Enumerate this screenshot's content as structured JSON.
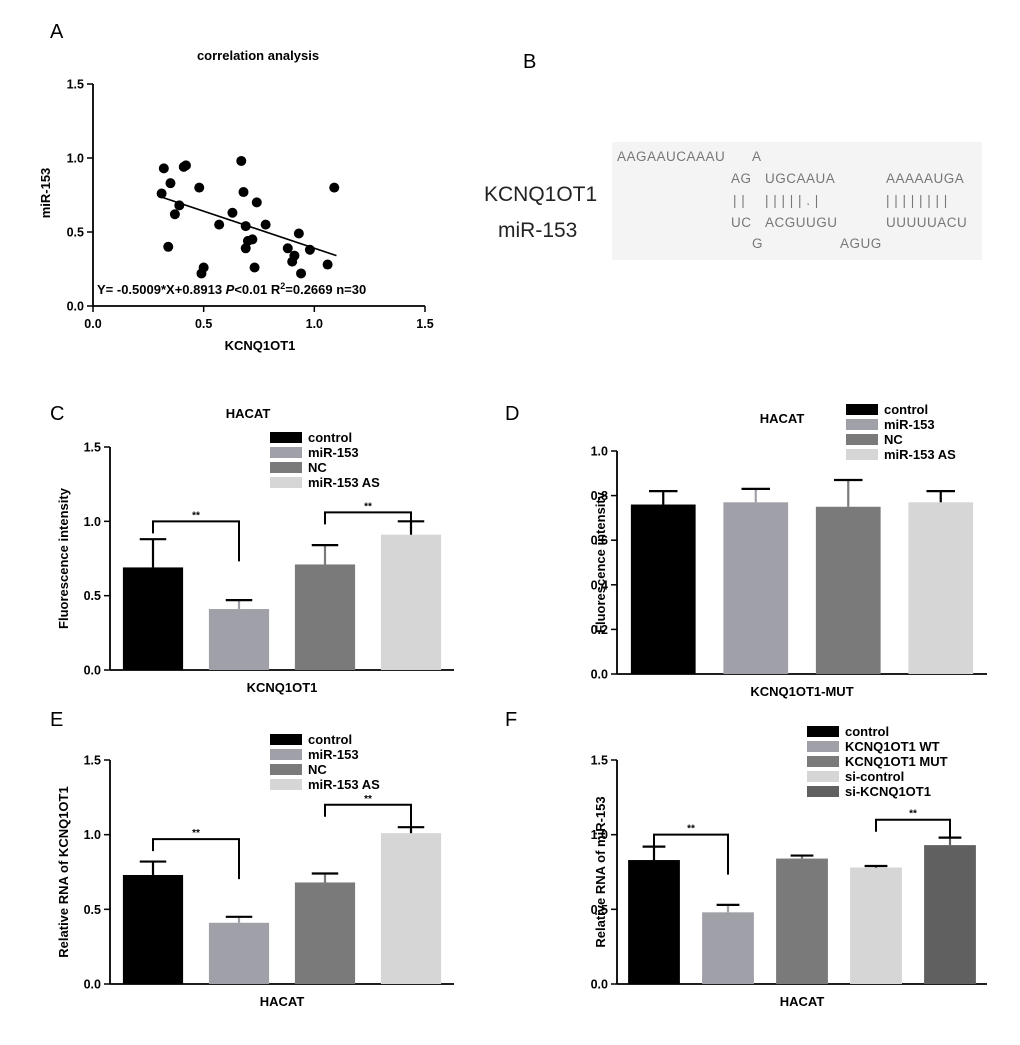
{
  "panels": {
    "A": "A",
    "B": "B",
    "C": "C",
    "D": "D",
    "E": "E",
    "F": "F"
  },
  "colors": {
    "black": "#000000",
    "mid_gray": "#a0a0a8",
    "dark_gray": "#7a7a7a",
    "light_gray": "#d6d6d6",
    "darker_gray": "#606060",
    "seq_bg": "#f4f4f4",
    "seq_text": "#777777"
  },
  "chart_data": [
    {
      "id": "A",
      "type": "scatter",
      "title": "correlation analysis",
      "xlabel": "KCNQ1OT1",
      "ylabel": "miR-153",
      "xlim": [
        0.0,
        1.5
      ],
      "ylim": [
        0.0,
        1.5
      ],
      "xticks": [
        "0.0",
        "0.5",
        "1.0",
        "1.5"
      ],
      "yticks": [
        "0.0",
        "0.5",
        "1.0",
        "1.5"
      ],
      "points": [
        [
          0.31,
          0.76
        ],
        [
          0.32,
          0.93
        ],
        [
          0.35,
          0.83
        ],
        [
          0.34,
          0.4
        ],
        [
          0.37,
          0.62
        ],
        [
          0.39,
          0.68
        ],
        [
          0.41,
          0.94
        ],
        [
          0.42,
          0.95
        ],
        [
          0.48,
          0.8
        ],
        [
          0.49,
          0.22
        ],
        [
          0.5,
          0.26
        ],
        [
          0.57,
          0.55
        ],
        [
          0.63,
          0.63
        ],
        [
          0.67,
          0.98
        ],
        [
          0.68,
          0.77
        ],
        [
          0.69,
          0.39
        ],
        [
          0.69,
          0.54
        ],
        [
          0.7,
          0.44
        ],
        [
          0.72,
          0.45
        ],
        [
          0.73,
          0.26
        ],
        [
          0.74,
          0.7
        ],
        [
          0.78,
          0.55
        ],
        [
          0.88,
          0.39
        ],
        [
          0.9,
          0.3
        ],
        [
          0.91,
          0.34
        ],
        [
          0.93,
          0.49
        ],
        [
          0.94,
          0.22
        ],
        [
          0.98,
          0.38
        ],
        [
          1.06,
          0.28
        ],
        [
          1.09,
          0.8
        ]
      ],
      "regression": {
        "slope": -0.5009,
        "intercept": 0.8913,
        "x_range": [
          0.3,
          1.1
        ]
      },
      "equation_parts": [
        "Y= -0.5009*X+0.8913 ",
        "P",
        "<0.01 R",
        "2",
        "=0.2669 n=30"
      ]
    },
    {
      "id": "C",
      "type": "bar",
      "title": "HACAT",
      "xlabel": "KCNQ1OT1",
      "ylabel": "Fluorescence intensity",
      "ylim": [
        0.0,
        1.5
      ],
      "yticks": [
        "0.0",
        "0.5",
        "1.0",
        "1.5"
      ],
      "categories": [
        "control",
        "miR-153",
        "NC",
        "miR-153 AS"
      ],
      "values": [
        0.69,
        0.41,
        0.71,
        0.91
      ],
      "errors": [
        0.19,
        0.06,
        0.13,
        0.09
      ],
      "colors": [
        "#000000",
        "#a0a0a8",
        "#7a7a7a",
        "#d6d6d6"
      ],
      "legend": [
        "control",
        "miR-153",
        "NC",
        "miR-153 AS"
      ],
      "sig_brackets": [
        {
          "from": 0,
          "to": 1,
          "label": "**",
          "y": 1.0
        },
        {
          "from": 2,
          "to": 3,
          "label": "**",
          "y": 1.06
        }
      ]
    },
    {
      "id": "D",
      "type": "bar",
      "title": "HACAT",
      "xlabel": "KCNQ1OT1-MUT",
      "ylabel": "Fluorescence intensity",
      "ylim": [
        0.0,
        1.0
      ],
      "yticks": [
        "0.0",
        "0.2",
        "0.4",
        "0.6",
        "0.8",
        "1.0"
      ],
      "categories": [
        "control",
        "miR-153",
        "NC",
        "miR-153 AS"
      ],
      "values": [
        0.76,
        0.77,
        0.75,
        0.77
      ],
      "errors": [
        0.06,
        0.06,
        0.12,
        0.05
      ],
      "colors": [
        "#000000",
        "#a0a0a8",
        "#7a7a7a",
        "#d6d6d6"
      ],
      "legend": [
        "control",
        "miR-153",
        "NC",
        "miR-153 AS"
      ],
      "sig_brackets": []
    },
    {
      "id": "E",
      "type": "bar",
      "title": "",
      "xlabel": "HACAT",
      "ylabel": "Relative RNA of KCNQ1OT1",
      "ylim": [
        0.0,
        1.5
      ],
      "yticks": [
        "0.0",
        "0.5",
        "1.0",
        "1.5"
      ],
      "categories": [
        "control",
        "miR-153",
        "NC",
        "miR-153 AS"
      ],
      "values": [
        0.73,
        0.41,
        0.68,
        1.01
      ],
      "errors": [
        0.09,
        0.04,
        0.06,
        0.04
      ],
      "colors": [
        "#000000",
        "#a0a0a8",
        "#7a7a7a",
        "#d6d6d6"
      ],
      "legend": [
        "control",
        "miR-153",
        "NC",
        "miR-153 AS"
      ],
      "sig_brackets": [
        {
          "from": 0,
          "to": 1,
          "label": "**",
          "y": 0.97
        },
        {
          "from": 2,
          "to": 3,
          "label": "**",
          "y": 1.2
        }
      ]
    },
    {
      "id": "F",
      "type": "bar",
      "title": "",
      "xlabel": "HACAT",
      "ylabel": "Relative RNA of miR-153",
      "ylim": [
        0.0,
        1.5
      ],
      "yticks": [
        "0.0",
        "0.5",
        "1.0",
        "1.5"
      ],
      "categories": [
        "control",
        "KCNQ1OT1 WT",
        "KCNQ1OT1 MUT",
        "si-control",
        "si-KCNQ1OT1"
      ],
      "values": [
        0.83,
        0.48,
        0.84,
        0.78,
        0.93
      ],
      "errors": [
        0.09,
        0.05,
        0.02,
        0.01,
        0.05
      ],
      "colors": [
        "#000000",
        "#a0a0a8",
        "#7a7a7a",
        "#d6d6d6",
        "#606060"
      ],
      "legend": [
        "control",
        "KCNQ1OT1 WT",
        "KCNQ1OT1 MUT",
        "si-control",
        "si-KCNQ1OT1"
      ],
      "sig_brackets": [
        {
          "from": 0,
          "to": 1,
          "label": "**",
          "y": 1.0
        },
        {
          "from": 3,
          "to": 4,
          "label": "**",
          "y": 1.1
        }
      ]
    }
  ],
  "panel_b": {
    "gene_label": "KCNQ1OT1",
    "mirna_label": "miR-153",
    "rows": [
      [
        "AAGAAUCAAAU",
        "A",
        ""
      ],
      [
        "AG",
        "UGCAAUA",
        "AAAAAUGA"
      ],
      [
        "| |",
        "| | | | | .  |",
        "| | | | | | | |"
      ],
      [
        "UC",
        "ACGUUGU",
        "UUUUUACU"
      ],
      [
        "G",
        "AGUG",
        ""
      ]
    ]
  }
}
